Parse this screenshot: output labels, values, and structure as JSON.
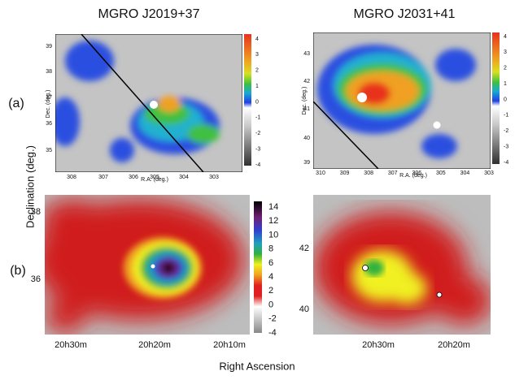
{
  "titles": [
    "MGRO J2019+37",
    "MGRO J2031+41"
  ],
  "row_labels": [
    "(a)",
    "(b)"
  ],
  "y_axis_label": "Declination (deg.)",
  "x_axis_label": "Right Ascension",
  "panels": [
    {
      "x_label": "R.A. (deg.)",
      "y_label": "Dec. (deg.)",
      "xticks": [
        "308",
        "307",
        "306",
        "305",
        "304",
        "303"
      ],
      "yticks": [
        "39",
        "38",
        "37",
        "36",
        "35"
      ],
      "colorbar_ticks": [
        "4",
        "3",
        "2",
        "1",
        "0",
        "-1",
        "-2",
        "-3",
        "-4"
      ]
    },
    {
      "x_label": "R.A. (deg.)",
      "y_label": "Dec. (deg.)",
      "xticks": [
        "310",
        "309",
        "308",
        "307",
        "306",
        "305",
        "304",
        "303"
      ],
      "yticks": [
        "43",
        "42",
        "41",
        "40",
        "39"
      ],
      "colorbar_ticks": [
        "4",
        "3",
        "2",
        "1",
        "0",
        "-1",
        "-2",
        "-3",
        "-4"
      ]
    },
    {
      "xticks": [
        "20h30m",
        "20h20m",
        "20h10m"
      ],
      "yticks": [
        "38",
        "36"
      ],
      "colorbar_ticks": [
        "14",
        "12",
        "10",
        "8",
        "6",
        "4",
        "2",
        "0",
        "-2",
        "-4"
      ]
    },
    {
      "xticks": [
        "20h30m",
        "20h20m"
      ],
      "yticks": [
        "42",
        "40"
      ]
    }
  ]
}
